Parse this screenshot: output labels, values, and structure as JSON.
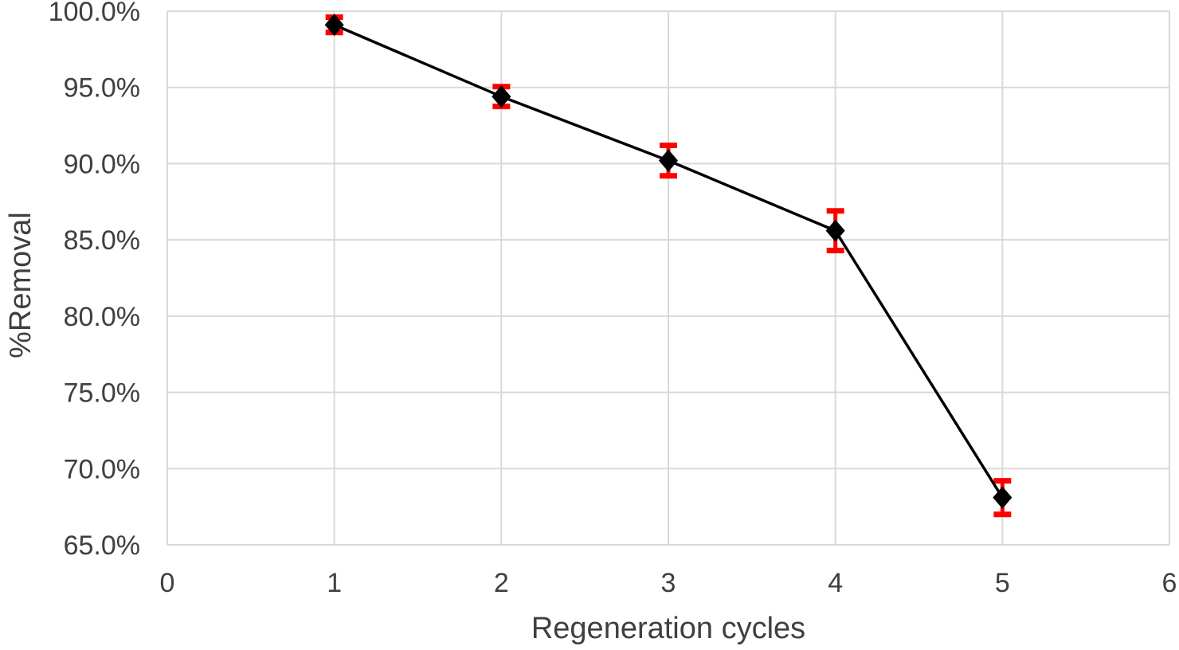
{
  "chart_data": {
    "type": "line",
    "xlabel": "Regeneration cycles",
    "ylabel": "%Removal",
    "x": [
      1,
      2,
      3,
      4,
      5
    ],
    "series": [
      {
        "name": "%Removal",
        "values": [
          99.1,
          94.4,
          90.2,
          85.6,
          68.1
        ],
        "errors": [
          0.5,
          0.65,
          1.0,
          1.3,
          1.1
        ]
      }
    ],
    "xlim": [
      0,
      6
    ],
    "ylim": [
      65,
      100
    ],
    "x_tick_values": [
      0,
      1,
      2,
      3,
      4,
      5,
      6
    ],
    "x_tick_labels": [
      "0",
      "1",
      "2",
      "3",
      "4",
      "5",
      "6"
    ],
    "y_tick_values": [
      100,
      95,
      90,
      85,
      80,
      75,
      70,
      65
    ],
    "y_tick_labels": [
      "100.0%",
      "95.0%",
      "90.0%",
      "85.0%",
      "80.0%",
      "75.0%",
      "70.0%",
      "65.0%"
    ],
    "grid": true,
    "legend_position": "none",
    "marker_shape": "diamond",
    "colors": {
      "line": "#000000",
      "marker": "#000000",
      "error_bar": "#ff0000",
      "gridline": "#d9d9d9",
      "tick_label": "#3f3f3f",
      "axis_title": "#3f3f3f",
      "background": "#ffffff"
    }
  }
}
